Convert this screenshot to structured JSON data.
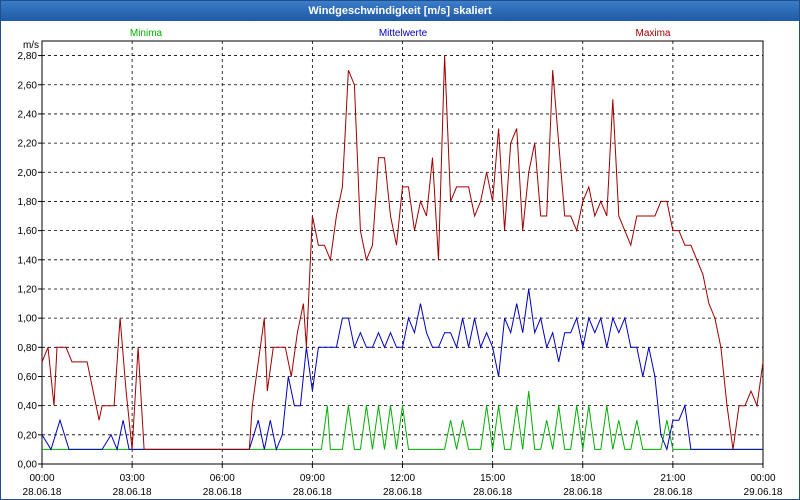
{
  "window": {
    "title": "Windgeschwindigkeit [m/s] skaliert"
  },
  "chart_data": {
    "type": "line",
    "title": "Windgeschwindigkeit [m/s] skaliert",
    "ylabel": "m/s",
    "ylim": [
      0,
      2.9
    ],
    "xlim_hours": [
      0,
      24
    ],
    "grid": true,
    "legend_placement": "top",
    "y_ticks": [
      "0,00",
      "0,20",
      "0,40",
      "0,60",
      "0,80",
      "1,00",
      "1,20",
      "1,40",
      "1,60",
      "1,80",
      "2,00",
      "2,20",
      "2,40",
      "2,60",
      "2,80"
    ],
    "x_ticks": [
      {
        "time": "00:00",
        "date": "28.06.18"
      },
      {
        "time": "03:00",
        "date": "28.06.18"
      },
      {
        "time": "06:00",
        "date": "28.06.18"
      },
      {
        "time": "09:00",
        "date": "28.06.18"
      },
      {
        "time": "12:00",
        "date": "28.06.18"
      },
      {
        "time": "15:00",
        "date": "28.06.18"
      },
      {
        "time": "18:00",
        "date": "28.06.18"
      },
      {
        "time": "21:00",
        "date": "28.06.18"
      },
      {
        "time": "00:00",
        "date": "29.06.18"
      }
    ],
    "series": [
      {
        "name": "Minima",
        "color": "#00b000",
        "points": [
          [
            0,
            0.1
          ],
          [
            9,
            0.1
          ],
          [
            9.3,
            0.1
          ],
          [
            9.5,
            0.4
          ],
          [
            9.6,
            0.1
          ],
          [
            10,
            0.1
          ],
          [
            10.2,
            0.4
          ],
          [
            10.4,
            0.1
          ],
          [
            10.6,
            0.1
          ],
          [
            10.8,
            0.4
          ],
          [
            11,
            0.1
          ],
          [
            11.2,
            0.4
          ],
          [
            11.4,
            0.1
          ],
          [
            11.6,
            0.4
          ],
          [
            11.8,
            0.1
          ],
          [
            12,
            0.4
          ],
          [
            12.2,
            0.1
          ],
          [
            12.4,
            0.1
          ],
          [
            12.6,
            0.1
          ],
          [
            13.4,
            0.1
          ],
          [
            13.6,
            0.3
          ],
          [
            13.8,
            0.1
          ],
          [
            14,
            0.3
          ],
          [
            14.2,
            0.1
          ],
          [
            14.4,
            0.1
          ],
          [
            14.6,
            0.1
          ],
          [
            14.8,
            0.4
          ],
          [
            15,
            0.1
          ],
          [
            15.2,
            0.4
          ],
          [
            15.4,
            0.1
          ],
          [
            15.6,
            0.1
          ],
          [
            15.8,
            0.4
          ],
          [
            16,
            0.1
          ],
          [
            16.2,
            0.5
          ],
          [
            16.4,
            0.1
          ],
          [
            16.6,
            0.1
          ],
          [
            16.8,
            0.3
          ],
          [
            17,
            0.1
          ],
          [
            17.2,
            0.4
          ],
          [
            17.4,
            0.1
          ],
          [
            17.6,
            0.1
          ],
          [
            17.8,
            0.4
          ],
          [
            18,
            0.1
          ],
          [
            18.2,
            0.4
          ],
          [
            18.4,
            0.1
          ],
          [
            18.6,
            0.1
          ],
          [
            18.8,
            0.4
          ],
          [
            19,
            0.1
          ],
          [
            19.2,
            0.3
          ],
          [
            19.4,
            0.1
          ],
          [
            19.6,
            0.1
          ],
          [
            19.8,
            0.3
          ],
          [
            20,
            0.1
          ],
          [
            20.2,
            0.1
          ],
          [
            20.4,
            0.1
          ],
          [
            20.6,
            0.1
          ],
          [
            20.8,
            0.3
          ],
          [
            21,
            0.1
          ],
          [
            24,
            0.1
          ]
        ]
      },
      {
        "name": "Mittelwerte",
        "color": "#0000c0",
        "points": [
          [
            0,
            0.2
          ],
          [
            0.3,
            0.1
          ],
          [
            0.6,
            0.3
          ],
          [
            0.9,
            0.1
          ],
          [
            1.2,
            0.1
          ],
          [
            2,
            0.1
          ],
          [
            2.3,
            0.2
          ],
          [
            2.5,
            0.1
          ],
          [
            2.7,
            0.3
          ],
          [
            2.9,
            0.1
          ],
          [
            3,
            0.1
          ],
          [
            6.5,
            0.1
          ],
          [
            6.9,
            0.1
          ],
          [
            7.2,
            0.3
          ],
          [
            7.4,
            0.1
          ],
          [
            7.6,
            0.3
          ],
          [
            7.8,
            0.1
          ],
          [
            8,
            0.2
          ],
          [
            8.2,
            0.6
          ],
          [
            8.4,
            0.4
          ],
          [
            8.6,
            0.4
          ],
          [
            8.8,
            0.8
          ],
          [
            9,
            0.5
          ],
          [
            9.2,
            0.8
          ],
          [
            9.5,
            0.8
          ],
          [
            9.8,
            0.8
          ],
          [
            10,
            1.0
          ],
          [
            10.2,
            1.0
          ],
          [
            10.4,
            0.8
          ],
          [
            10.6,
            0.9
          ],
          [
            10.8,
            0.8
          ],
          [
            11,
            0.8
          ],
          [
            11.2,
            0.9
          ],
          [
            11.4,
            0.8
          ],
          [
            11.6,
            0.9
          ],
          [
            11.8,
            0.8
          ],
          [
            12,
            0.8
          ],
          [
            12.2,
            1.0
          ],
          [
            12.4,
            0.9
          ],
          [
            12.6,
            1.1
          ],
          [
            12.8,
            0.9
          ],
          [
            13,
            0.8
          ],
          [
            13.2,
            0.8
          ],
          [
            13.4,
            0.9
          ],
          [
            13.6,
            0.9
          ],
          [
            13.8,
            0.8
          ],
          [
            14,
            1.0
          ],
          [
            14.2,
            0.8
          ],
          [
            14.4,
            1.0
          ],
          [
            14.6,
            0.8
          ],
          [
            14.8,
            0.9
          ],
          [
            15,
            0.8
          ],
          [
            15.2,
            0.6
          ],
          [
            15.4,
            1.0
          ],
          [
            15.6,
            0.9
          ],
          [
            15.8,
            1.1
          ],
          [
            16,
            0.9
          ],
          [
            16.2,
            1.2
          ],
          [
            16.4,
            0.9
          ],
          [
            16.6,
            1.0
          ],
          [
            16.8,
            0.8
          ],
          [
            17,
            0.9
          ],
          [
            17.2,
            0.7
          ],
          [
            17.4,
            0.9
          ],
          [
            17.6,
            0.9
          ],
          [
            17.8,
            1.0
          ],
          [
            18,
            0.8
          ],
          [
            18.2,
            1.0
          ],
          [
            18.4,
            0.9
          ],
          [
            18.6,
            1.0
          ],
          [
            18.8,
            0.8
          ],
          [
            19,
            1.0
          ],
          [
            19.2,
            0.9
          ],
          [
            19.4,
            1.0
          ],
          [
            19.6,
            0.8
          ],
          [
            19.8,
            0.8
          ],
          [
            20,
            0.6
          ],
          [
            20.2,
            0.8
          ],
          [
            20.4,
            0.6
          ],
          [
            20.6,
            0.2
          ],
          [
            20.8,
            0.1
          ],
          [
            21,
            0.3
          ],
          [
            21.2,
            0.3
          ],
          [
            21.4,
            0.4
          ],
          [
            21.6,
            0.1
          ],
          [
            24,
            0.1
          ]
        ]
      },
      {
        "name": "Maxima",
        "color": "#a00000",
        "points": [
          [
            0,
            0.7
          ],
          [
            0.2,
            0.8
          ],
          [
            0.4,
            0.4
          ],
          [
            0.5,
            0.8
          ],
          [
            0.8,
            0.8
          ],
          [
            1,
            0.7
          ],
          [
            1.5,
            0.7
          ],
          [
            1.7,
            0.5
          ],
          [
            1.9,
            0.3
          ],
          [
            2,
            0.4
          ],
          [
            2.3,
            0.4
          ],
          [
            2.4,
            0.4
          ],
          [
            2.6,
            1.0
          ],
          [
            2.8,
            0.5
          ],
          [
            3,
            0.1
          ],
          [
            3.2,
            0.8
          ],
          [
            3.4,
            0.1
          ],
          [
            6.9,
            0.1
          ],
          [
            7.0,
            0.4
          ],
          [
            7.2,
            0.7
          ],
          [
            7.4,
            1.0
          ],
          [
            7.5,
            0.5
          ],
          [
            7.7,
            0.8
          ],
          [
            7.9,
            0.8
          ],
          [
            8.1,
            0.8
          ],
          [
            8.3,
            0.6
          ],
          [
            8.5,
            0.9
          ],
          [
            8.7,
            1.1
          ],
          [
            8.8,
            0.8
          ],
          [
            9,
            1.7
          ],
          [
            9.2,
            1.5
          ],
          [
            9.4,
            1.5
          ],
          [
            9.6,
            1.4
          ],
          [
            9.8,
            1.7
          ],
          [
            10,
            1.9
          ],
          [
            10.2,
            2.7
          ],
          [
            10.4,
            2.6
          ],
          [
            10.6,
            1.6
          ],
          [
            10.8,
            1.4
          ],
          [
            11,
            1.5
          ],
          [
            11.2,
            2.1
          ],
          [
            11.4,
            2.1
          ],
          [
            11.6,
            1.7
          ],
          [
            11.8,
            1.5
          ],
          [
            12,
            1.9
          ],
          [
            12.2,
            1.9
          ],
          [
            12.4,
            1.6
          ],
          [
            12.6,
            1.8
          ],
          [
            12.8,
            1.7
          ],
          [
            13,
            2.1
          ],
          [
            13.2,
            1.4
          ],
          [
            13.4,
            2.8
          ],
          [
            13.6,
            1.8
          ],
          [
            13.8,
            1.9
          ],
          [
            14,
            1.9
          ],
          [
            14.2,
            1.9
          ],
          [
            14.4,
            1.7
          ],
          [
            14.6,
            1.8
          ],
          [
            14.8,
            2.0
          ],
          [
            15,
            1.8
          ],
          [
            15.2,
            2.3
          ],
          [
            15.4,
            1.6
          ],
          [
            15.6,
            2.2
          ],
          [
            15.8,
            2.3
          ],
          [
            16,
            1.6
          ],
          [
            16.2,
            2.0
          ],
          [
            16.4,
            2.2
          ],
          [
            16.6,
            1.7
          ],
          [
            16.8,
            1.7
          ],
          [
            17,
            2.7
          ],
          [
            17.2,
            2.2
          ],
          [
            17.4,
            1.7
          ],
          [
            17.6,
            1.7
          ],
          [
            17.8,
            1.6
          ],
          [
            18,
            1.8
          ],
          [
            18.2,
            1.9
          ],
          [
            18.4,
            1.7
          ],
          [
            18.6,
            1.8
          ],
          [
            18.8,
            1.7
          ],
          [
            19,
            2.5
          ],
          [
            19.2,
            1.7
          ],
          [
            19.4,
            1.6
          ],
          [
            19.6,
            1.5
          ],
          [
            19.8,
            1.7
          ],
          [
            20,
            1.7
          ],
          [
            20.2,
            1.7
          ],
          [
            20.4,
            1.7
          ],
          [
            20.6,
            1.8
          ],
          [
            20.8,
            1.8
          ],
          [
            21,
            1.6
          ],
          [
            21.2,
            1.6
          ],
          [
            21.4,
            1.5
          ],
          [
            21.6,
            1.5
          ],
          [
            21.8,
            1.4
          ],
          [
            22,
            1.3
          ],
          [
            22.2,
            1.1
          ],
          [
            22.4,
            1.0
          ],
          [
            22.6,
            0.8
          ],
          [
            22.8,
            0.4
          ],
          [
            23,
            0.1
          ],
          [
            23.2,
            0.4
          ],
          [
            23.4,
            0.4
          ],
          [
            23.6,
            0.5
          ],
          [
            23.8,
            0.4
          ],
          [
            24,
            0.7
          ]
        ]
      }
    ]
  }
}
